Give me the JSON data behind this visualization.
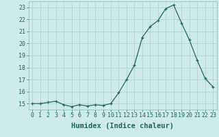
{
  "x": [
    0,
    1,
    2,
    3,
    4,
    5,
    6,
    7,
    8,
    9,
    10,
    11,
    12,
    13,
    14,
    15,
    16,
    17,
    18,
    19,
    20,
    21,
    22,
    23
  ],
  "y": [
    15.0,
    15.0,
    15.1,
    15.2,
    14.9,
    14.75,
    14.9,
    14.8,
    14.9,
    14.85,
    15.0,
    15.9,
    17.0,
    18.2,
    20.5,
    21.4,
    21.9,
    22.9,
    23.2,
    21.7,
    20.3,
    18.6,
    17.1,
    16.4
  ],
  "xlabel": "Humidex (Indice chaleur)",
  "ylim": [
    14.5,
    23.5
  ],
  "xlim": [
    -0.5,
    23.5
  ],
  "yticks": [
    15,
    16,
    17,
    18,
    19,
    20,
    21,
    22,
    23
  ],
  "xticks": [
    0,
    1,
    2,
    3,
    4,
    5,
    6,
    7,
    8,
    9,
    10,
    11,
    12,
    13,
    14,
    15,
    16,
    17,
    18,
    19,
    20,
    21,
    22,
    23
  ],
  "line_color": "#1a6b5e",
  "marker": "+",
  "marker_size": 3.5,
  "bg_color": "#ceeaea",
  "grid_color": "#b0cccc",
  "tick_label_fontsize": 6.0,
  "xlabel_fontsize": 7.5
}
